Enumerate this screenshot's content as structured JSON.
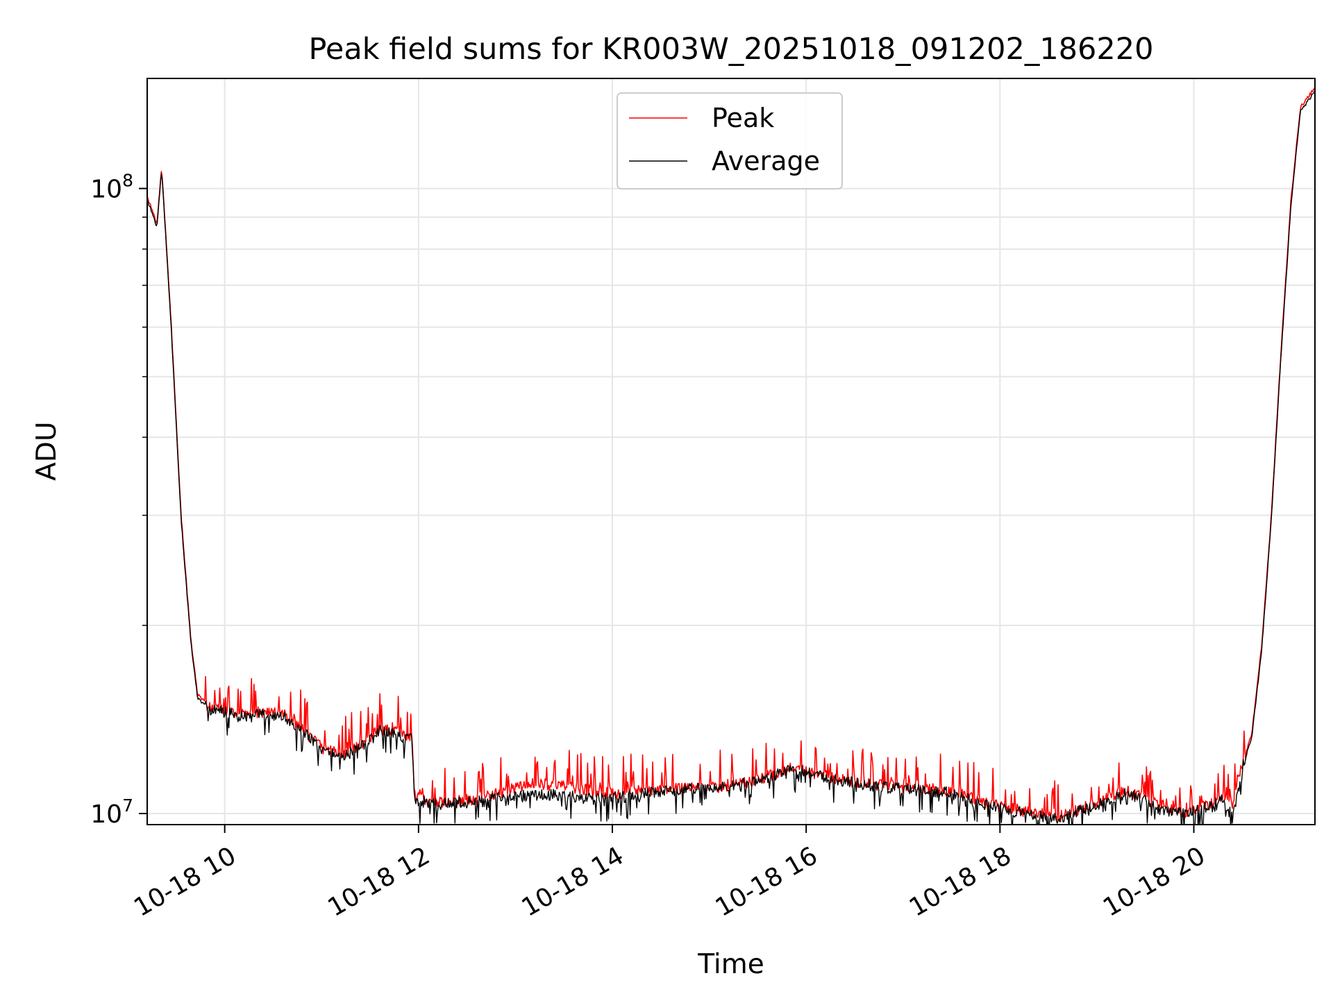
{
  "chart_data": {
    "type": "line",
    "title": "Peak field sums for KR003W_20251018_091202_186220",
    "xlabel": "Time",
    "ylabel": "ADU",
    "yscale": "log",
    "grid": true,
    "legend_position": "upper center",
    "xlim": [
      9.2,
      21.25
    ],
    "ylim": [
      9600000,
      150000000
    ],
    "x_unit": "hours since 2025-10-18 00:00",
    "x_ticks": [
      {
        "value": 10,
        "label": "10-18 10"
      },
      {
        "value": 12,
        "label": "10-18 12"
      },
      {
        "value": 14,
        "label": "10-18 14"
      },
      {
        "value": 16,
        "label": "10-18 16"
      },
      {
        "value": 18,
        "label": "10-18 18"
      },
      {
        "value": 20,
        "label": "10-18 20"
      }
    ],
    "y_major_ticks": [
      {
        "value": 10000000,
        "base": "10",
        "exp": "7"
      },
      {
        "value": 100000000,
        "base": "10",
        "exp": "8"
      }
    ],
    "y_minor_ticks": [
      20000000,
      30000000,
      40000000,
      50000000,
      60000000,
      70000000,
      80000000,
      90000000
    ],
    "series": [
      {
        "name": "Peak",
        "color": "#ff0000",
        "x": [
          9.2,
          9.3,
          9.35,
          9.45,
          9.55,
          9.65,
          9.72,
          9.85,
          10.0,
          10.2,
          10.4,
          10.6,
          10.8,
          11.0,
          11.2,
          11.4,
          11.6,
          11.8,
          11.93,
          11.96,
          12.2,
          12.4,
          12.6,
          12.8,
          13.0,
          13.2,
          13.5,
          13.8,
          14.0,
          14.3,
          14.6,
          14.9,
          15.2,
          15.5,
          15.8,
          16.0,
          16.3,
          16.6,
          16.9,
          17.2,
          17.5,
          17.8,
          18.0,
          18.3,
          18.6,
          18.9,
          19.1,
          19.3,
          19.5,
          19.7,
          19.9,
          20.1,
          20.3,
          20.4,
          20.5,
          20.6,
          20.7,
          20.8,
          20.9,
          21.0,
          21.1,
          21.25
        ],
        "y": [
          97000000,
          88000000,
          108000000,
          60000000,
          30000000,
          19000000,
          15500000,
          14800000,
          14700000,
          14400000,
          14600000,
          14500000,
          13700000,
          12800000,
          12500000,
          12900000,
          13700000,
          13500000,
          13300000,
          10700000,
          10400000,
          10500000,
          10600000,
          10800000,
          11000000,
          11200000,
          11100000,
          10900000,
          10800000,
          10900000,
          11000000,
          11050000,
          11100000,
          11350000,
          11800000,
          11750000,
          11400000,
          11200000,
          11100000,
          11000000,
          10900000,
          10500000,
          10300000,
          10100000,
          9900000,
          10300000,
          10600000,
          10900000,
          10600000,
          10200000,
          10100000,
          10300000,
          10700000,
          10400000,
          12000000,
          13500000,
          18500000,
          30000000,
          55000000,
          95000000,
          135000000,
          145000000
        ]
      },
      {
        "name": "Average",
        "color": "#000000",
        "x": [
          9.2,
          9.3,
          9.35,
          9.45,
          9.55,
          9.65,
          9.72,
          9.85,
          10.0,
          10.2,
          10.4,
          10.6,
          10.8,
          11.0,
          11.2,
          11.4,
          11.6,
          11.8,
          11.93,
          11.96,
          12.2,
          12.4,
          12.6,
          12.8,
          13.0,
          13.2,
          13.5,
          13.8,
          14.0,
          14.3,
          14.6,
          14.9,
          15.2,
          15.5,
          15.8,
          16.0,
          16.3,
          16.6,
          16.9,
          17.2,
          17.5,
          17.8,
          18.0,
          18.3,
          18.6,
          18.9,
          19.1,
          19.3,
          19.5,
          19.7,
          19.9,
          20.1,
          20.3,
          20.4,
          20.5,
          20.6,
          20.7,
          20.8,
          20.9,
          21.0,
          21.1,
          21.25
        ],
        "y": [
          96000000,
          87000000,
          107000000,
          59000000,
          29500000,
          18800000,
          15300000,
          14600000,
          14500000,
          14200000,
          14400000,
          14300000,
          13500000,
          12600000,
          12300000,
          12700000,
          13500000,
          13300000,
          13100000,
          10500000,
          10300000,
          10400000,
          10400000,
          10550000,
          10600000,
          10700000,
          10650000,
          10500000,
          10550000,
          10700000,
          10850000,
          10950000,
          11000000,
          11250000,
          11700000,
          11650000,
          11300000,
          11100000,
          10950000,
          10850000,
          10750000,
          10350000,
          10150000,
          9950000,
          9800000,
          10150000,
          10450000,
          10750000,
          10450000,
          10050000,
          9950000,
          10150000,
          10500000,
          9800000,
          11800000,
          13300000,
          18200000,
          29500000,
          54000000,
          93000000,
          133000000,
          143000000
        ]
      }
    ]
  }
}
